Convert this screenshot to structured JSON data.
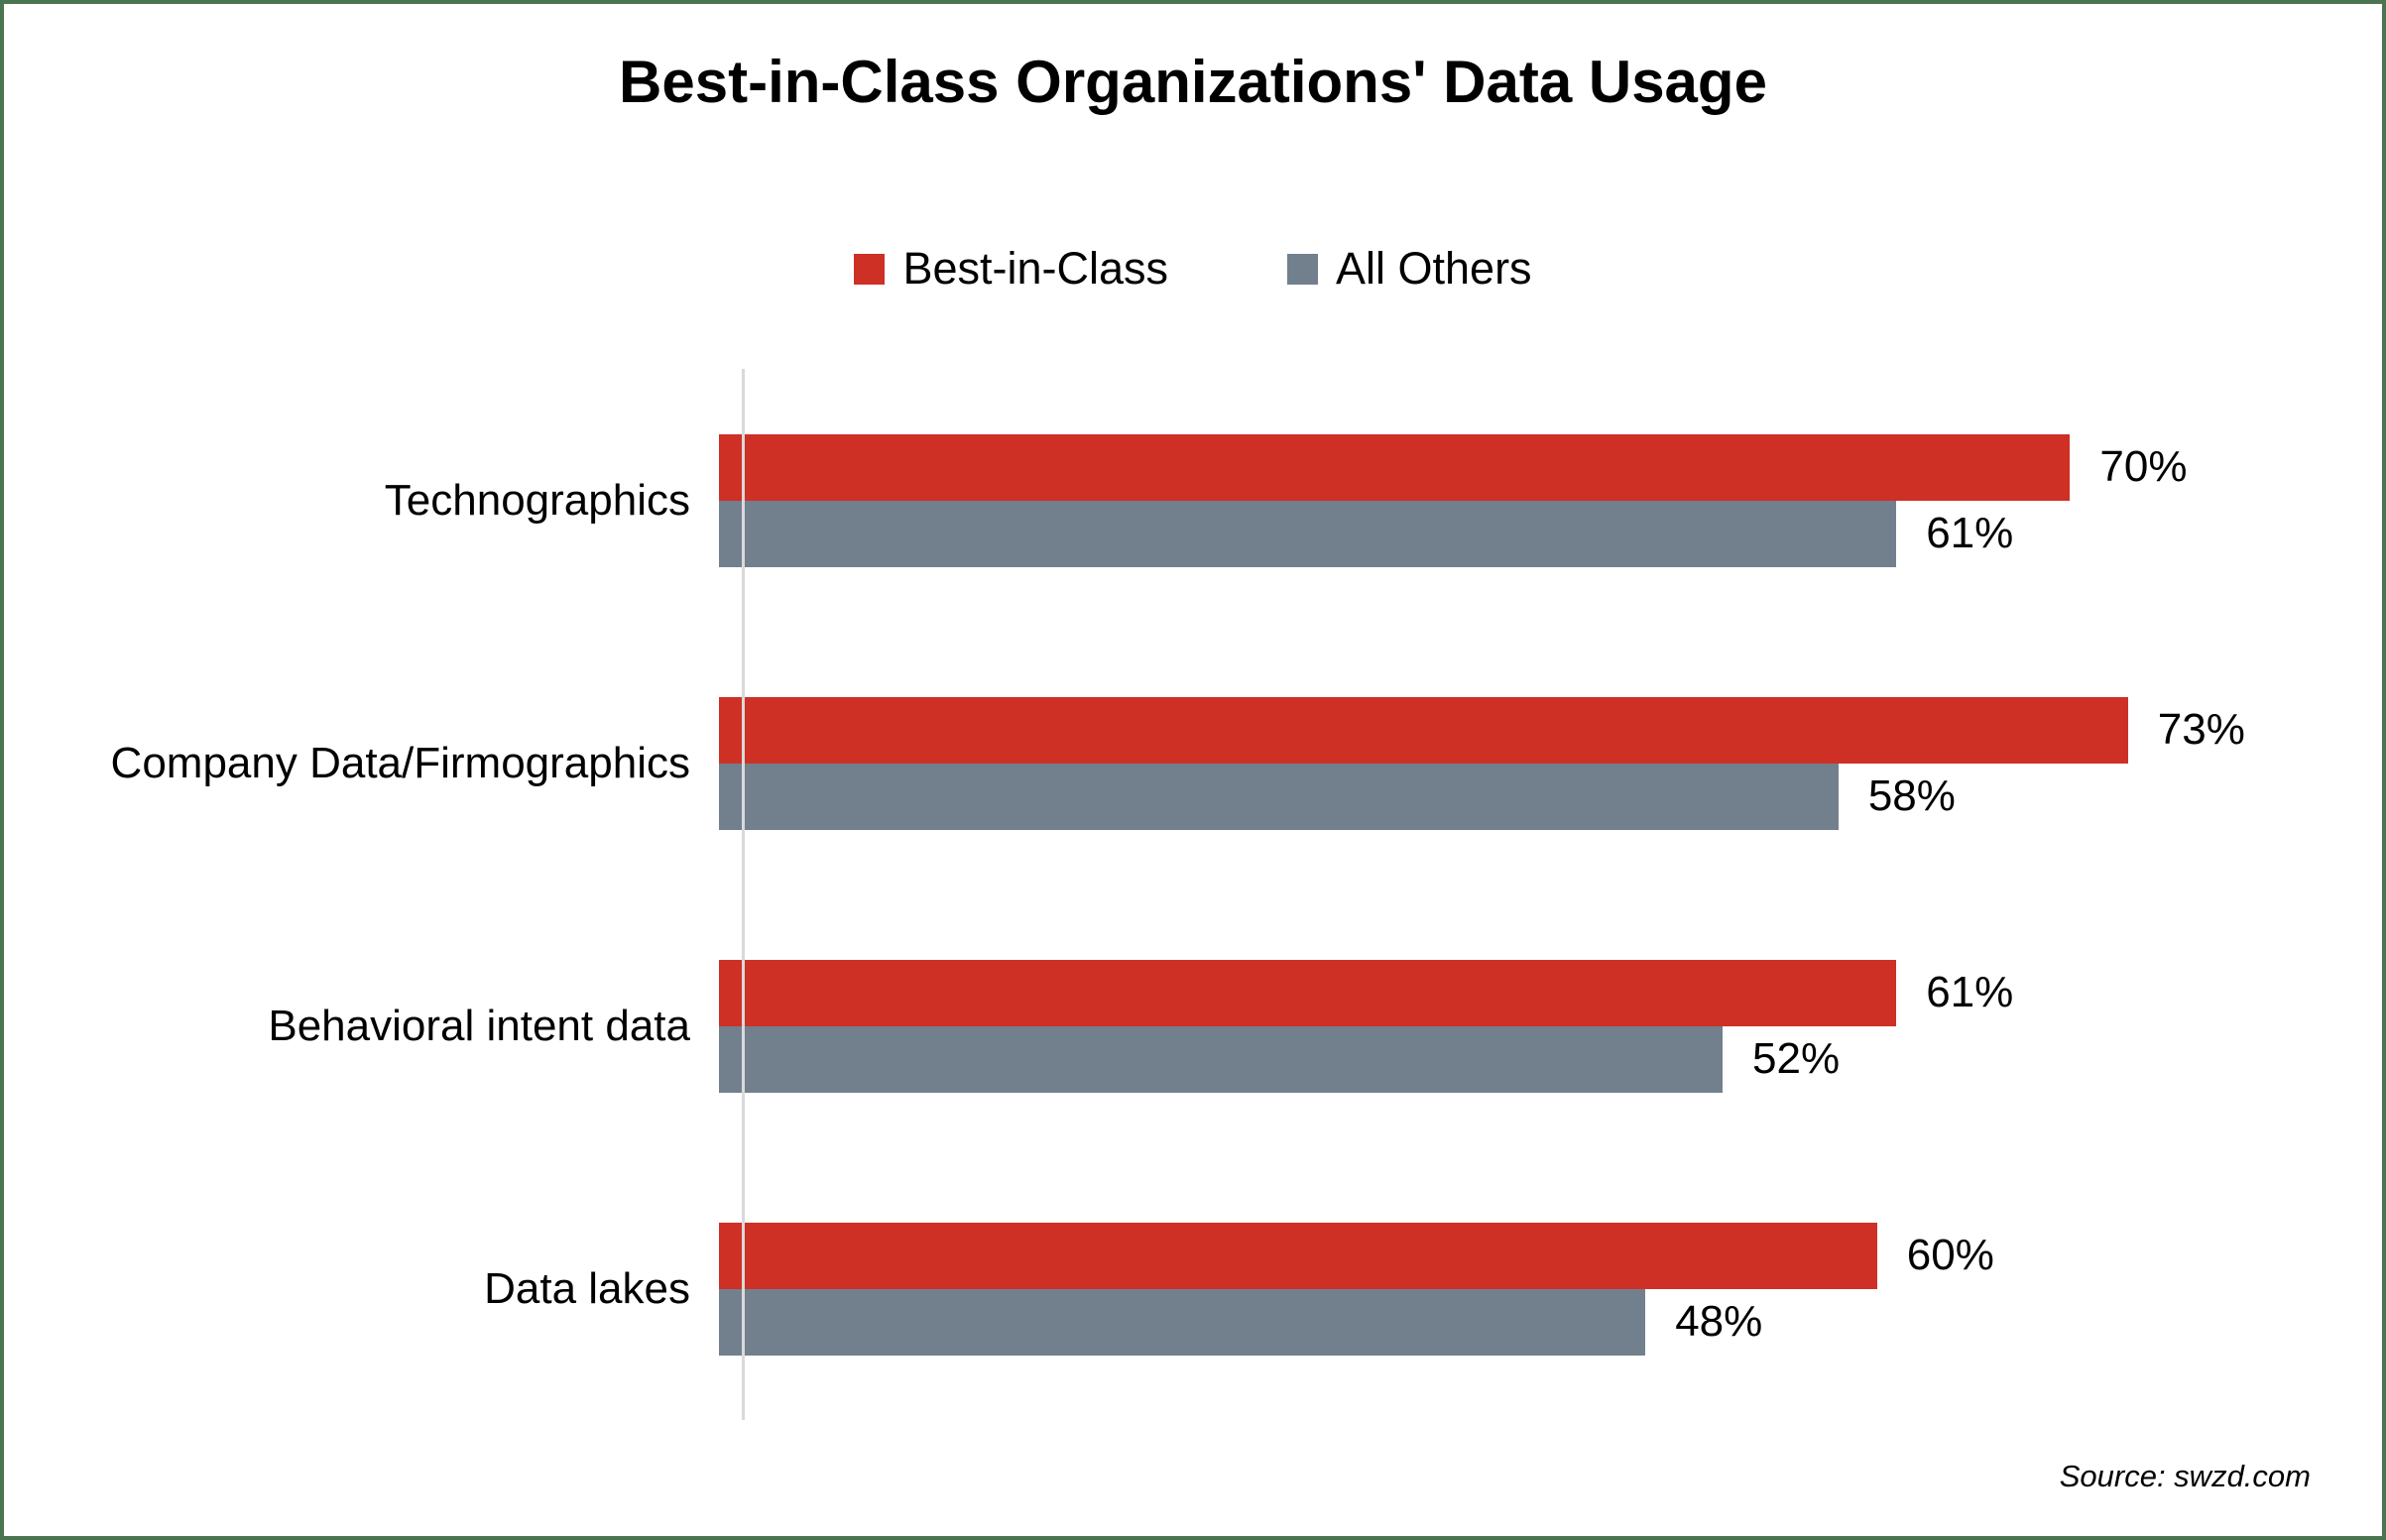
{
  "title": "Best-in-Class Organizations' Data Usage",
  "legend": {
    "items": [
      {
        "label": "Best-in-Class",
        "color": "#CE3026"
      },
      {
        "label": "All Others",
        "color": "#72808E"
      }
    ]
  },
  "source": "Source: swzd.com",
  "colors": {
    "best_in_class": "#CE3026",
    "all_others": "#72808E",
    "frame_border": "#4B7551",
    "axis_line": "#D9D9D9",
    "text": "#000000"
  },
  "chart_data": {
    "type": "bar",
    "orientation": "horizontal",
    "title": "Best-in-Class Organizations' Data Usage",
    "categories": [
      "Technographics",
      "Company Data/Firmographics",
      "Behavioral intent data",
      "Data lakes"
    ],
    "series": [
      {
        "name": "Best-in-Class",
        "color": "#CE3026",
        "values": [
          70,
          73,
          61,
          60
        ]
      },
      {
        "name": "All Others",
        "color": "#72808E",
        "values": [
          61,
          58,
          52,
          48
        ]
      }
    ],
    "value_suffix": "%",
    "xlim": [
      0,
      80
    ],
    "grid": false,
    "data_labels": true,
    "legend_position": "top",
    "xlabel": "",
    "ylabel": ""
  }
}
